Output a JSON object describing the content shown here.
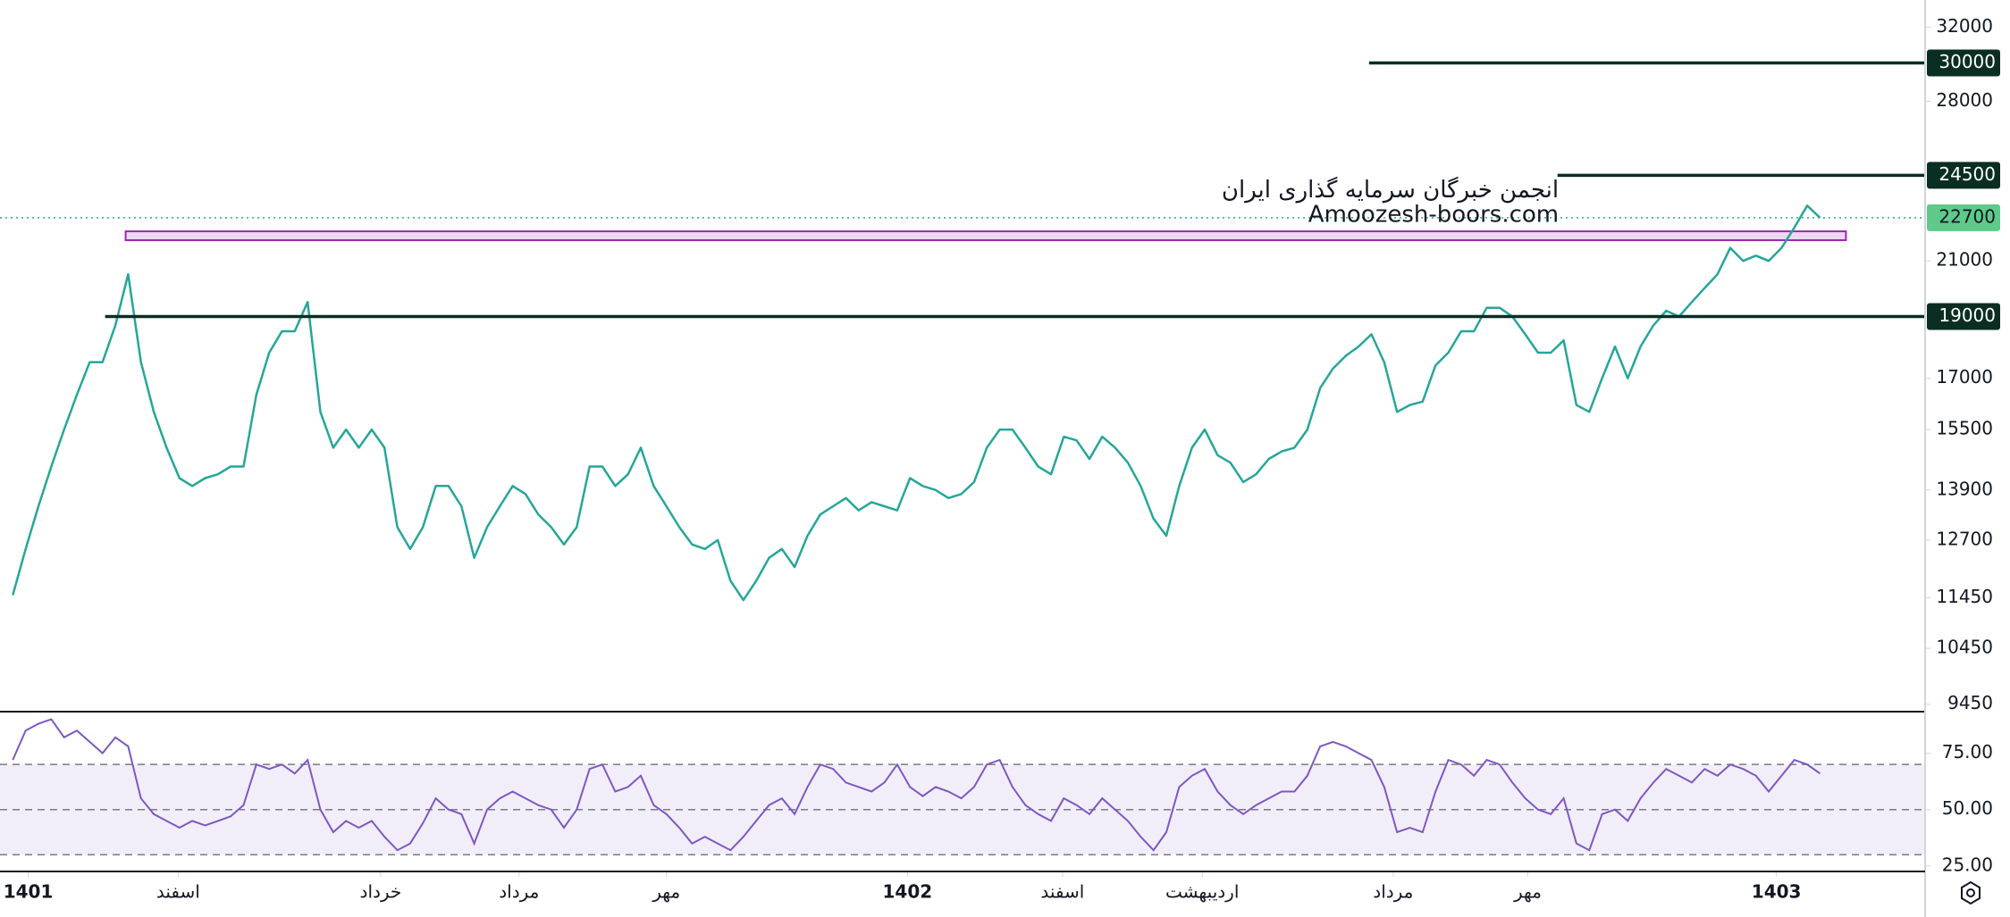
{
  "chart_data": [
    {
      "type": "line",
      "x": [
        1,
        2,
        3,
        4,
        5,
        6,
        7,
        8,
        9,
        10,
        11,
        12,
        13,
        14,
        15,
        16,
        17,
        18,
        19,
        20,
        21,
        22,
        23,
        24,
        25,
        26,
        27,
        28,
        29,
        30,
        31,
        32,
        33,
        34,
        35,
        36,
        37,
        38,
        39,
        40,
        41,
        42,
        43,
        44,
        45,
        46,
        47,
        48,
        49,
        50,
        51,
        52,
        53,
        54,
        55,
        56,
        57,
        58,
        59,
        60,
        61,
        62,
        63,
        64,
        65,
        66,
        67,
        68,
        69,
        70,
        71,
        72,
        73,
        74,
        75,
        76,
        77,
        78,
        79,
        80,
        81,
        82,
        83,
        84,
        85,
        86,
        87,
        88,
        89,
        90,
        91,
        92,
        93,
        94,
        95,
        96,
        97,
        98,
        99,
        100,
        101,
        102,
        103,
        104,
        105,
        106,
        107,
        108,
        109,
        110,
        111,
        112,
        113,
        114,
        115,
        116,
        117,
        118,
        119,
        120,
        121,
        122,
        123,
        124,
        125,
        126,
        127,
        128,
        129,
        130,
        131,
        132,
        133,
        134,
        135,
        136,
        137,
        138,
        139,
        140,
        141,
        142
      ],
      "values": [
        11500,
        12500,
        13500,
        14500,
        15500,
        16500,
        17500,
        17500,
        18700,
        20500,
        17500,
        16000,
        15000,
        14200,
        14000,
        14200,
        14300,
        14500,
        14500,
        16500,
        17800,
        18500,
        18500,
        19500,
        16000,
        15000,
        15500,
        15000,
        15500,
        15000,
        13000,
        12500,
        13000,
        14000,
        14000,
        13500,
        12300,
        13000,
        13500,
        14000,
        13800,
        13300,
        13000,
        12600,
        13000,
        14500,
        14500,
        14000,
        14300,
        15000,
        14000,
        13500,
        13000,
        12600,
        12500,
        12700,
        11800,
        11400,
        11800,
        12300,
        12500,
        12100,
        12800,
        13300,
        13500,
        13700,
        13400,
        13600,
        13500,
        13400,
        14200,
        14000,
        13900,
        13700,
        13800,
        14100,
        15000,
        15500,
        15500,
        15000,
        14500,
        14300,
        15300,
        15200,
        14700,
        15300,
        15000,
        14600,
        14000,
        13200,
        12800,
        14000,
        15000,
        15500,
        14800,
        14600,
        14100,
        14300,
        14700,
        14900,
        15000,
        15500,
        16700,
        17300,
        17700,
        18000,
        18400,
        17500,
        16000,
        16200,
        16300,
        17400,
        17800,
        18500,
        18500,
        19300,
        19300,
        19000,
        18400,
        17800,
        17800,
        18200,
        16200,
        16000,
        17000,
        18000,
        17000,
        18000,
        18700,
        19200,
        19000,
        19500,
        20000,
        20500,
        21500,
        21000,
        21200,
        21000,
        21500,
        22300,
        23200,
        22700
      ],
      "color": "#26a69a",
      "log_scale": true,
      "ylim": [
        9340,
        33600
      ],
      "yticks": [
        9450,
        10450,
        11450,
        12700,
        13900,
        15500,
        17000,
        19000,
        21000,
        28000,
        32000
      ],
      "xlim": [
        0,
        150.2
      ],
      "xticks": [
        {
          "value": 2.2,
          "label": "1401"
        },
        {
          "value": 13.9,
          "label": "اسفند"
        },
        {
          "value": 29.7,
          "label": "خرداد"
        },
        {
          "value": 40.5,
          "label": "مرداد"
        },
        {
          "value": 52,
          "label": "مهر"
        },
        {
          "value": 70.8,
          "label": "1402"
        },
        {
          "value": 82.9,
          "label": "اسفند"
        },
        {
          "value": 93.8,
          "label": "اردیبهشت"
        },
        {
          "value": 108.7,
          "label": "مرداد"
        },
        {
          "value": 119.2,
          "label": "مهر"
        },
        {
          "value": 138.6,
          "label": "1403"
        }
      ],
      "levels": [
        30000,
        24500,
        19000
      ],
      "last_price": 22700,
      "zone": [
        21800,
        22150
      ],
      "annotations": [
        "انجمن خبرگان سرمایه گذاری ایران",
        "Amoozesh-boors.com"
      ]
    },
    {
      "type": "line",
      "values": [
        72,
        85,
        88,
        90,
        82,
        85,
        80,
        75,
        82,
        78,
        55,
        48,
        45,
        42,
        45,
        43,
        45,
        47,
        52,
        70,
        68,
        70,
        66,
        72,
        50,
        40,
        45,
        42,
        45,
        38,
        32,
        35,
        44,
        55,
        50,
        48,
        35,
        50,
        55,
        58,
        55,
        52,
        50,
        42,
        50,
        68,
        70,
        58,
        60,
        65,
        52,
        48,
        42,
        35,
        38,
        35,
        32,
        38,
        45,
        52,
        55,
        48,
        60,
        70,
        68,
        62,
        60,
        58,
        62,
        70,
        60,
        56,
        60,
        58,
        55,
        60,
        70,
        72,
        60,
        52,
        48,
        45,
        55,
        52,
        48,
        55,
        50,
        45,
        38,
        32,
        40,
        60,
        65,
        68,
        58,
        52,
        48,
        52,
        55,
        58,
        58,
        65,
        78,
        80,
        78,
        75,
        72,
        60,
        40,
        42,
        40,
        58,
        72,
        70,
        65,
        72,
        70,
        62,
        55,
        50,
        48,
        55,
        35,
        32,
        48,
        50,
        45,
        55,
        62,
        68,
        65,
        62,
        68,
        65,
        70,
        68,
        65,
        58,
        65,
        72,
        70,
        66
      ],
      "color": "#7e57c2",
      "ylim": [
        23,
        93
      ],
      "yticks": [
        {
          "value": 25,
          "label": "25.00"
        },
        {
          "value": 50,
          "label": "50.00"
        },
        {
          "value": 75,
          "label": "75.00"
        }
      ],
      "levels": [
        30,
        50,
        70
      ]
    }
  ]
}
